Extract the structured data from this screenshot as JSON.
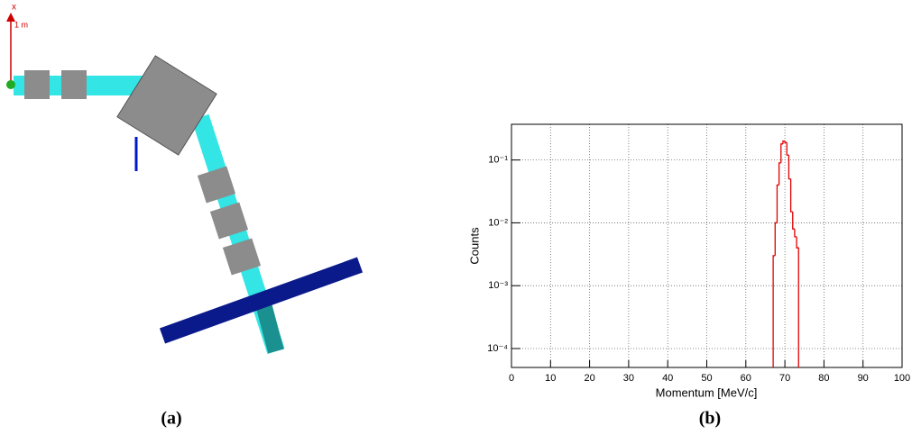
{
  "panel_a": {
    "label": "(a)",
    "axis_name": "x",
    "scale": "1 m"
  },
  "chart_data": {
    "type": "histogram",
    "panel_label": "(b)",
    "x_label": "Momentum [MeV/c]",
    "y_label": "Counts",
    "bins": [
      67,
      67.5,
      68,
      68.5,
      69,
      69.5,
      70,
      70.5,
      71,
      71.5,
      72,
      72.5,
      73,
      73.5
    ],
    "values": [
      0.003,
      0.01,
      0.04,
      0.09,
      0.18,
      0.2,
      0.19,
      0.12,
      0.05,
      0.015,
      0.008,
      0.006,
      0.004
    ],
    "color": "#e00000",
    "log_y": true,
    "grid": true,
    "xlim": [
      0,
      100
    ],
    "xticks": [
      0,
      10,
      20,
      30,
      40,
      50,
      60,
      70,
      80,
      90,
      100
    ],
    "ylim": [
      5e-05,
      0.37
    ],
    "yticks": [
      {
        "value": 0.0001,
        "label": "10⁻⁴"
      },
      {
        "value": 0.001,
        "label": "10⁻³"
      },
      {
        "value": 0.01,
        "label": "10⁻²"
      },
      {
        "value": 0.1,
        "label": "10⁻¹"
      }
    ]
  }
}
